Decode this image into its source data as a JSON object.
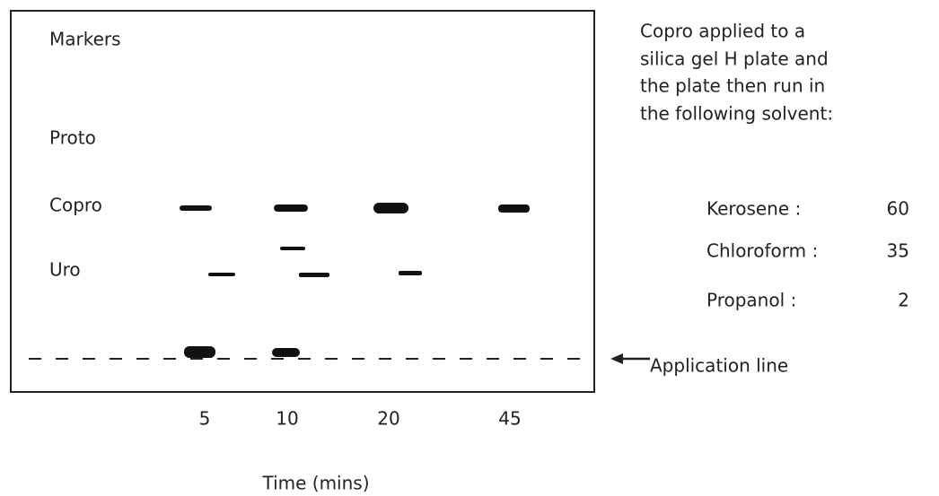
{
  "plate": {
    "marker_title": "Markers",
    "markers": [
      "Proto",
      "Copro",
      "Uro"
    ],
    "lanes": [
      "5",
      "10",
      "20",
      "45"
    ],
    "x_axis_label": "Time (mins)"
  },
  "description": [
    "Copro applied to a",
    "silica gel H plate and",
    "the plate then run in",
    "the following solvent:"
  ],
  "solvent": {
    "rows": [
      [
        "Kerosene :",
        "60"
      ],
      [
        "Chloroform :",
        "35"
      ],
      [
        "Propanol :",
        "2"
      ]
    ]
  },
  "application_label": "Application line"
}
